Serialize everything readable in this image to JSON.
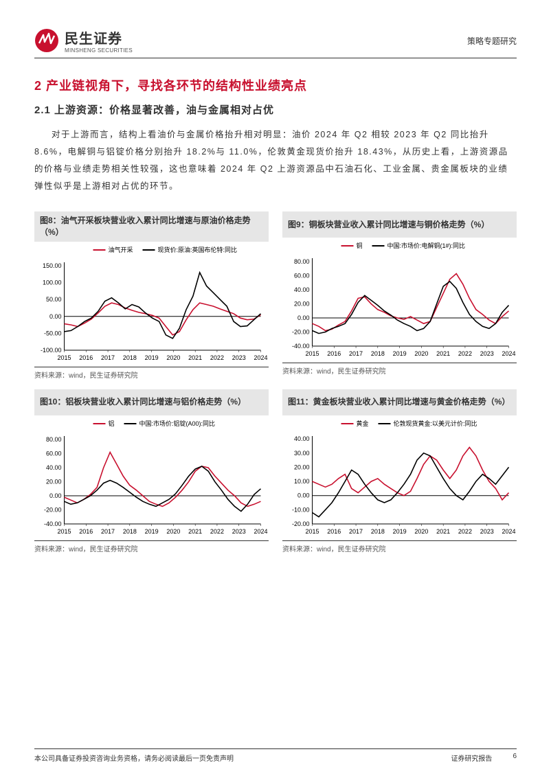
{
  "header": {
    "company_cn": "民生证券",
    "company_en": "MINSHENG SECURITIES",
    "doc_type": "策略专题研究"
  },
  "section_title": "2 产业链视角下，寻找各环节的结构性业绩亮点",
  "subsection_title": "2.1 上游资源：价格显著改善，油与金属相对占优",
  "body": "对于上游而言，结构上看油价与金属价格抬升相对明显：油价 2024 年 Q2 相较 2023 年 Q2 同比抬升 8.6%，电解铜与铝锭价格分别抬升 18.2%与 11.0%，伦敦黄金现货价抬升 18.43%，从历史上看，上游资源品的价格与业绩走势相关性较强，这也意味着 2024 年 Q2 上游资源品中石油石化、工业金属、贵金属板块的业绩弹性似乎是上游相对占优的环节。",
  "charts": [
    {
      "title": "图8：油气开采板块营业收入累计同比增速与原油价格走势（%）",
      "legend": [
        "油气开采",
        "现货价:原油:英国布伦特:同比"
      ],
      "colors": [
        "#c8102e",
        "#000000"
      ],
      "x_labels": [
        "2015",
        "2016",
        "2017",
        "2018",
        "2019",
        "2020",
        "2021",
        "2022",
        "2023",
        "2024"
      ],
      "y_ticks": [
        -100,
        -50,
        0,
        50,
        100,
        150
      ],
      "ylim": [
        -100,
        160
      ],
      "series": [
        [
          -22,
          -25,
          -30,
          -20,
          -8,
          10,
          30,
          40,
          35,
          25,
          18,
          12,
          8,
          3,
          -5,
          -30,
          -55,
          -45,
          -10,
          20,
          40,
          35,
          30,
          22,
          15,
          8,
          -5,
          -10,
          -8,
          5
        ],
        [
          -45,
          -42,
          -30,
          -15,
          -5,
          15,
          45,
          55,
          40,
          22,
          35,
          28,
          10,
          -5,
          -15,
          -55,
          -65,
          -35,
          20,
          60,
          130,
          90,
          70,
          50,
          30,
          -15,
          -30,
          -28,
          -10,
          8
        ]
      ],
      "source": "资料来源：wind，民生证券研究院"
    },
    {
      "title": "图9：铜板块营业收入累计同比增速与铜价格走势（%）",
      "legend": [
        "铜",
        "中国:市场价:电解铜(1#):同比"
      ],
      "colors": [
        "#c8102e",
        "#000000"
      ],
      "x_labels": [
        "2015",
        "2016",
        "2017",
        "2018",
        "2019",
        "2020",
        "2021",
        "2022",
        "2023",
        "2024"
      ],
      "y_ticks": [
        -40,
        -20,
        0,
        20,
        40,
        60,
        80
      ],
      "ylim": [
        -40,
        85
      ],
      "series": [
        [
          -8,
          -12,
          -18,
          -16,
          -10,
          -5,
          10,
          28,
          30,
          20,
          12,
          8,
          3,
          0,
          -2,
          2,
          -3,
          -8,
          -5,
          15,
          35,
          55,
          63,
          48,
          28,
          12,
          5,
          -3,
          -8,
          2,
          10
        ],
        [
          -18,
          -22,
          -20,
          -15,
          -12,
          -8,
          5,
          22,
          32,
          25,
          18,
          10,
          4,
          -3,
          -8,
          -12,
          -18,
          -15,
          -5,
          20,
          45,
          52,
          42,
          22,
          5,
          -5,
          -12,
          -15,
          -8,
          8,
          18
        ]
      ],
      "source": "资料来源：wind，民生证券研究院"
    },
    {
      "title": "图10：铝板块营业收入累计同比增速与铝价格走势（%）",
      "legend": [
        "铝",
        "中国:市场价:铝锭(A00):同比"
      ],
      "colors": [
        "#c8102e",
        "#000000"
      ],
      "x_labels": [
        "2015",
        "2016",
        "2017",
        "2018",
        "2019",
        "2020",
        "2021",
        "2022",
        "2023",
        "2024"
      ],
      "y_ticks": [
        -40,
        -20,
        0,
        20,
        40,
        60,
        80
      ],
      "ylim": [
        -40,
        85
      ],
      "series": [
        [
          -2,
          -6,
          -10,
          -5,
          2,
          12,
          40,
          62,
          45,
          28,
          15,
          8,
          0,
          -8,
          -12,
          -15,
          -10,
          -2,
          8,
          20,
          35,
          42,
          40,
          28,
          18,
          8,
          0,
          -10,
          -15,
          -12,
          -8
        ],
        [
          -8,
          -12,
          -10,
          -5,
          0,
          8,
          18,
          22,
          18,
          12,
          5,
          -2,
          -8,
          -12,
          -15,
          -10,
          -5,
          3,
          15,
          28,
          38,
          42,
          35,
          20,
          8,
          -5,
          -15,
          -22,
          -12,
          2,
          10
        ]
      ],
      "source": "资料来源：wind，民生证券研究院"
    },
    {
      "title": "图11：黄金板块营业收入累计同比增速与黄金价格走势（%）",
      "legend": [
        "黄金",
        "伦敦现货黄金:以美元计价:同比"
      ],
      "colors": [
        "#c8102e",
        "#000000"
      ],
      "x_labels": [
        "2015",
        "2016",
        "2017",
        "2018",
        "2019",
        "2020",
        "2021",
        "2022",
        "2023",
        "2024"
      ],
      "y_ticks": [
        -20,
        -10,
        0,
        10,
        20,
        30,
        40
      ],
      "ylim": [
        -20,
        42
      ],
      "series": [
        [
          10,
          8,
          6,
          8,
          12,
          15,
          5,
          2,
          6,
          10,
          12,
          8,
          5,
          2,
          0,
          3,
          12,
          22,
          28,
          25,
          18,
          12,
          18,
          28,
          34,
          28,
          18,
          10,
          5,
          -3,
          2
        ],
        [
          -12,
          -15,
          -10,
          -5,
          2,
          10,
          18,
          15,
          8,
          2,
          -3,
          -5,
          -3,
          2,
          8,
          15,
          25,
          30,
          28,
          20,
          12,
          5,
          0,
          -3,
          3,
          10,
          15,
          12,
          8,
          14,
          20
        ]
      ],
      "source": "资料来源：wind，民生证券研究院"
    }
  ],
  "footer": {
    "left": "本公司具备证券投资咨询业务资格，请务必阅读最后一页免责声明",
    "right_label": "证券研究报告",
    "page": "6"
  },
  "style": {
    "brand_red": "#c8102e",
    "grid_color": "#999999",
    "axis_color": "#000000",
    "bg": "#ffffff",
    "chart_title_bg": "#e6e6e6",
    "tick_fontsize": 9,
    "legend_fontsize": 9
  }
}
